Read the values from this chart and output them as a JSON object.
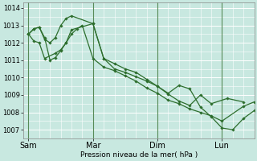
{
  "background_color": "#c8e8e0",
  "grid_color": "#ffffff",
  "line_color": "#2d6e2d",
  "marker_color": "#2d6e2d",
  "xlabel": "Pression niveau de la mer( hPa )",
  "ylim": [
    1006.5,
    1014.3
  ],
  "yticks": [
    1007,
    1008,
    1009,
    1010,
    1011,
    1012,
    1013,
    1014
  ],
  "xtick_labels": [
    "Sam",
    "Mar",
    "Dim",
    "Lun"
  ],
  "xtick_positions": [
    0,
    48,
    96,
    144
  ],
  "vline_positions": [
    0,
    48,
    96,
    144
  ],
  "xlim": [
    -4,
    168
  ],
  "series": [
    [
      1012.5,
      1012.8,
      1012.9,
      1012.2,
      1012.0,
      1012.3,
      1013.0,
      1013.4,
      1013.55,
      1013.1,
      1011.1,
      1010.5,
      1010.3,
      1010.05,
      1009.8,
      1009.5,
      1009.05,
      1008.65,
      1008.4,
      1009.0,
      1008.5,
      1008.8,
      1008.6
    ],
    [
      1012.5,
      1012.8,
      1012.9,
      1012.3,
      1011.0,
      1011.15,
      1011.55,
      1012.0,
      1012.75,
      1013.1,
      1011.1,
      1010.8,
      1010.5,
      1010.3,
      1009.9,
      1009.5,
      1009.1,
      1009.55,
      1009.35,
      1008.3,
      1007.75,
      1007.1,
      1007.0,
      1007.65,
      1008.1,
      1008.45,
      1008.6
    ],
    [
      1012.5,
      1012.1,
      1012.0,
      1011.1,
      1011.4,
      1011.6,
      1012.0,
      1012.5,
      1012.8,
      1013.0,
      1011.1,
      1010.6,
      1010.4,
      1010.1,
      1009.8,
      1009.4,
      1009.1,
      1008.7,
      1008.5,
      1008.2,
      1008.0,
      1007.8,
      1007.5,
      1008.35,
      1008.6
    ]
  ],
  "x_series": [
    [
      0,
      4,
      8,
      12,
      16,
      20,
      24,
      28,
      32,
      48,
      56,
      64,
      72,
      80,
      88,
      96,
      104,
      112,
      120,
      128,
      136,
      148,
      160
    ],
    [
      0,
      4,
      8,
      12,
      16,
      20,
      24,
      28,
      32,
      48,
      56,
      64,
      72,
      80,
      88,
      96,
      104,
      112,
      120,
      128,
      136,
      144,
      152,
      160,
      168,
      176,
      180
    ],
    [
      0,
      4,
      8,
      12,
      20,
      24,
      28,
      32,
      36,
      40,
      48,
      56,
      64,
      72,
      80,
      88,
      96,
      104,
      112,
      120,
      128,
      136,
      144,
      160,
      168
    ]
  ],
  "ylabel_fontsize": 6.5,
  "ytick_fontsize": 6,
  "xtick_fontsize": 7
}
